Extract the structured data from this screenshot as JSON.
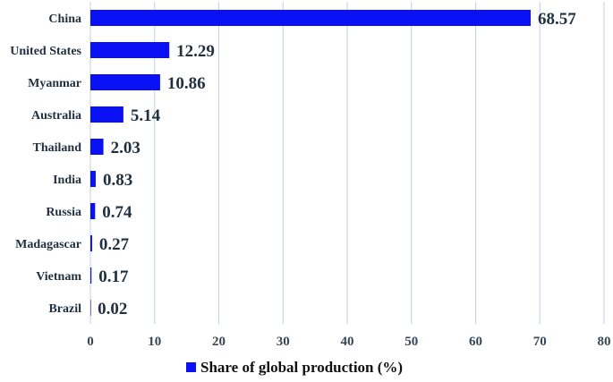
{
  "chart_data": {
    "type": "bar",
    "orientation": "horizontal",
    "categories": [
      "China",
      "United States",
      "Myanmar",
      "Australia",
      "Thailand",
      "India",
      "Russia",
      "Madagascar",
      "Vietnam",
      "Brazil"
    ],
    "series": [
      {
        "name": "Share of global production (%)",
        "values": [
          68.57,
          12.29,
          10.86,
          5.14,
          2.03,
          0.83,
          0.74,
          0.27,
          0.17,
          0.02
        ]
      }
    ],
    "value_labels": [
      "68.57",
      "12.29",
      "10.86",
      "5.14",
      "2.03",
      "0.83",
      "0.74",
      "0.27",
      "0.17",
      "0.02"
    ],
    "xlim": [
      0,
      80
    ],
    "xticks": [
      "0",
      "10",
      "20",
      "30",
      "40",
      "50",
      "60",
      "70",
      "80"
    ],
    "grid": "vertical",
    "legend_position": "bottom",
    "colors": {
      "bar": "#0a12f5",
      "grid": "#bfd0e4",
      "text": "#1f2f3f"
    }
  }
}
